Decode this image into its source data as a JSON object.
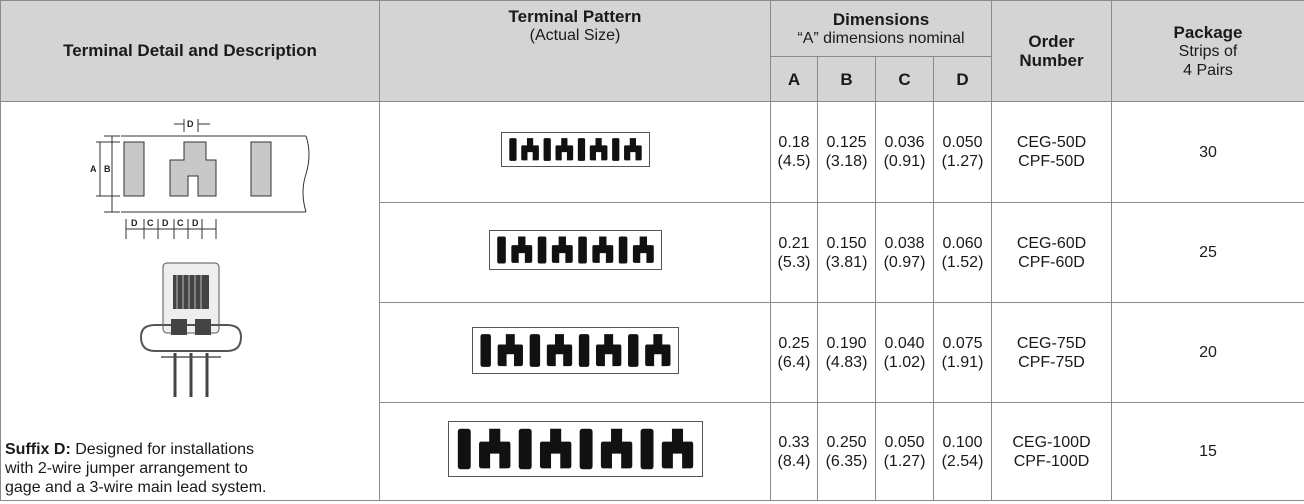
{
  "header": {
    "terminal_detail": "Terminal Detail and Description",
    "terminal_pattern": "Terminal Pattern",
    "terminal_pattern_sub": "(Actual Size)",
    "dimensions": "Dimensions",
    "dimensions_sub": "“A” dimensions nominal",
    "col_a": "A",
    "col_b": "B",
    "col_c": "C",
    "col_d": "D",
    "order_line1": "Order",
    "order_line2": "Number",
    "package": "Package",
    "package_sub1": "Strips of",
    "package_sub2": "4 Pairs"
  },
  "description": {
    "suffix_label": "Suffix D:",
    "text_line1": " Designed for installations",
    "text_line2": "with 2-wire jumper arrangement to",
    "text_line3": "gage and a 3-wire main lead system.",
    "diagram_labels": [
      "D",
      "A",
      "B",
      "D",
      "C",
      "D",
      "C",
      "D"
    ]
  },
  "rows": [
    {
      "a": "0.18",
      "a_mm": "(4.5)",
      "b": "0.125",
      "b_mm": "(3.18)",
      "c": "0.036",
      "c_mm": "(0.91)",
      "d": "0.050",
      "d_mm": "(1.27)",
      "order1": "CEG-50D",
      "order2": "CPF-50D",
      "package": "30"
    },
    {
      "a": "0.21",
      "a_mm": "(5.3)",
      "b": "0.150",
      "b_mm": "(3.81)",
      "c": "0.038",
      "c_mm": "(0.97)",
      "d": "0.060",
      "d_mm": "(1.52)",
      "order1": "CEG-60D",
      "order2": "CPF-60D",
      "package": "25"
    },
    {
      "a": "0.25",
      "a_mm": "(6.4)",
      "b": "0.190",
      "b_mm": "(4.83)",
      "c": "0.040",
      "c_mm": "(1.02)",
      "d": "0.075",
      "d_mm": "(1.91)",
      "order1": "CEG-75D",
      "order2": "CPF-75D",
      "package": "20"
    },
    {
      "a": "0.33",
      "a_mm": "(8.4)",
      "b": "0.250",
      "b_mm": "(6.35)",
      "c": "0.050",
      "c_mm": "(1.27)",
      "d": "0.100",
      "d_mm": "(2.54)",
      "order1": "CEG-100D",
      "order2": "CPF-100D",
      "package": "15"
    }
  ],
  "colors": {
    "header_bg": "#d4d4d4",
    "border": "#8a8a8a",
    "pattern_fill": "#111111"
  }
}
